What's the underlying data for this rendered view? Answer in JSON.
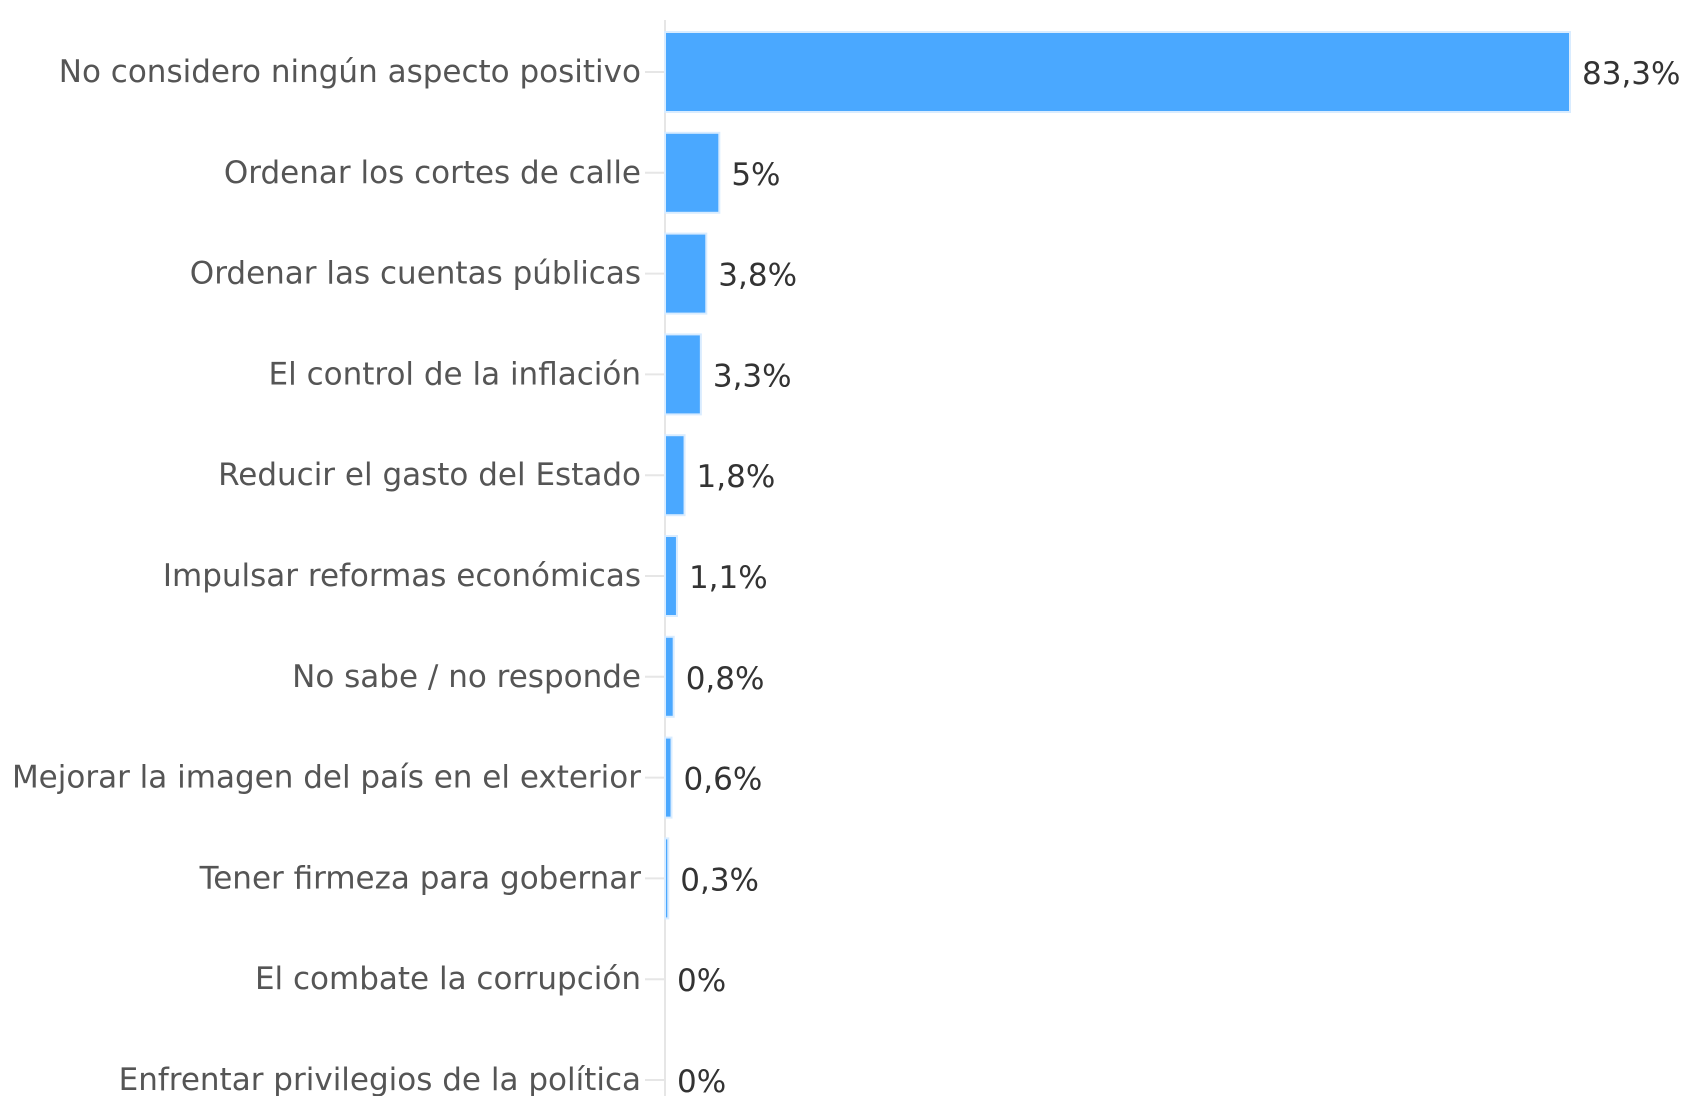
{
  "chart_data": {
    "type": "bar",
    "orientation": "horizontal",
    "categories": [
      "No considero ningún aspecto positivo",
      "Ordenar los cortes de calle",
      "Ordenar las cuentas públicas",
      "El control de la inflación",
      "Reducir el gasto del Estado",
      "Impulsar reformas económicas",
      "No sabe / no responde",
      "Mejorar la imagen del país en el exterior",
      "Tener firmeza para gobernar",
      "El combate la corrupción",
      "Enfrentar privilegios de la política"
    ],
    "values": [
      83.3,
      5,
      3.8,
      3.3,
      1.8,
      1.1,
      0.8,
      0.6,
      0.3,
      0,
      0
    ],
    "value_labels": [
      "83,3%",
      "5%",
      "3,8%",
      "3,3%",
      "1,8%",
      "1,1%",
      "0,8%",
      "0,6%",
      "0,3%",
      "0%",
      "0%"
    ],
    "title": "",
    "xlabel": "",
    "ylabel": "",
    "xlim": [
      0,
      83.3
    ],
    "grid": false,
    "legend": "none",
    "colors": {
      "bar": "#4aa8ff",
      "bar_edge": "#d9ecff",
      "axis": "#e6e6e6",
      "category_text": "#555555",
      "value_text": "#333333"
    }
  }
}
